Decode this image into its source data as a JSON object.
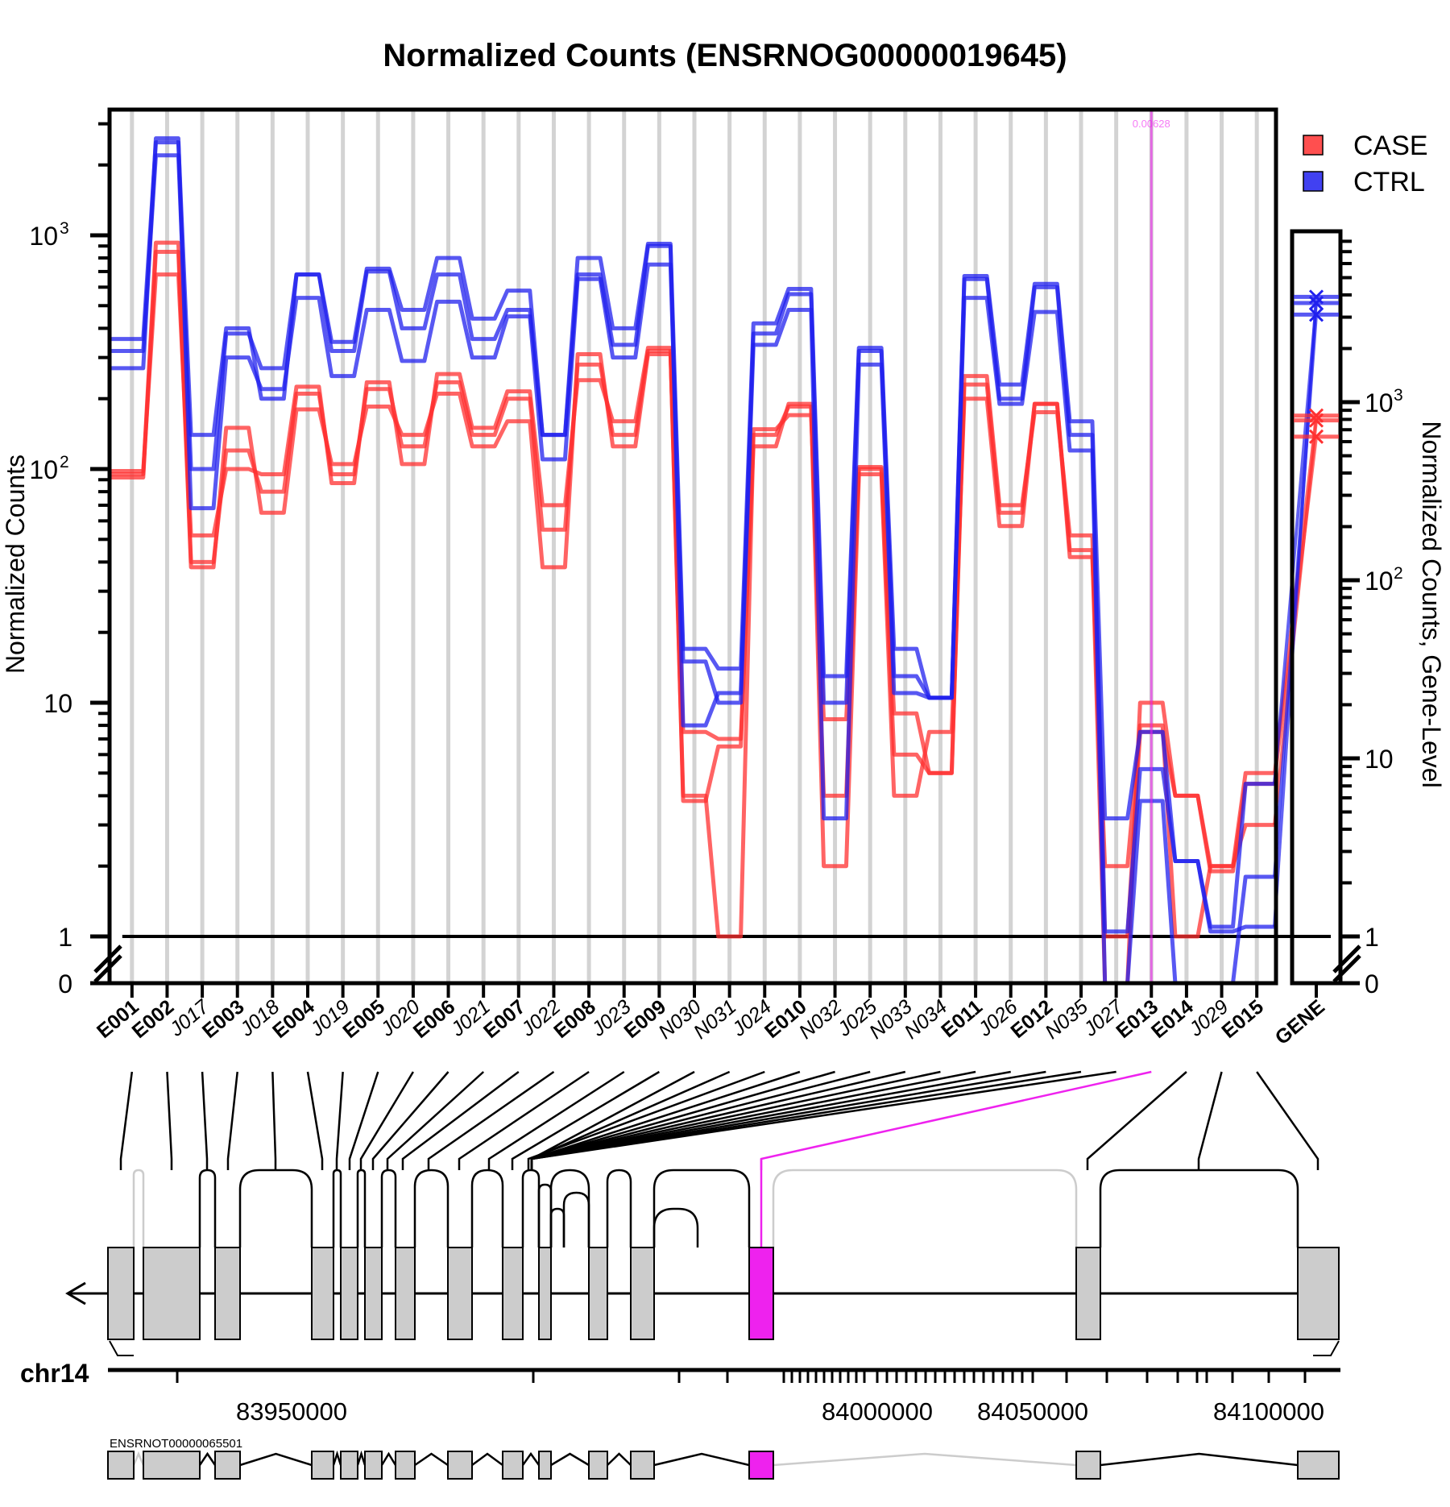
{
  "chart_data": {
    "type": "line",
    "title": "Normalized Counts (ENSRNOG00000019645)",
    "ylabel": "Normalized Counts",
    "ylabel_right": "Normalized Counts, Gene-Level",
    "y_scale": "log",
    "grid": true,
    "legend_position": "top-right",
    "y_ticks": [
      "0",
      "1",
      "10",
      "10^2",
      "10^3"
    ],
    "y_ticks_right": [
      "0",
      "1",
      "10",
      "10^2",
      "10^3"
    ],
    "categories": [
      "E001",
      "E002",
      "J017",
      "E003",
      "J018",
      "E004",
      "J019",
      "E005",
      "J020",
      "E006",
      "J021",
      "E007",
      "J022",
      "E008",
      "J023",
      "E009",
      "N030",
      "N031",
      "J024",
      "E010",
      "N032",
      "J025",
      "N033",
      "N034",
      "E011",
      "J026",
      "E012",
      "N035",
      "J027",
      "E013",
      "E014",
      "J029",
      "E015"
    ],
    "exon_features": [
      "E001",
      "E002",
      "E003",
      "E004",
      "E005",
      "E006",
      "E007",
      "E008",
      "E009",
      "E010",
      "E011",
      "E012",
      "E013",
      "E014",
      "E015"
    ],
    "gene_label": "GENE",
    "highlight": {
      "feature": "E013",
      "pvalue_text": "0.00628",
      "color": "#ee22ee"
    },
    "series": [
      {
        "name": "CASE",
        "color": "#ff3030",
        "values": [
          95,
          930,
          40,
          120,
          80,
          210,
          95,
          220,
          125,
          235,
          140,
          200,
          55,
          280,
          140,
          320,
          4,
          1,
          140,
          185,
          4,
          100,
          6,
          5,
          230,
          65,
          190,
          45,
          0,
          10,
          4,
          2,
          5
        ]
      },
      {
        "name": "CASE",
        "color": "#ff3030",
        "values": [
          92,
          850,
          38,
          150,
          65,
          180,
          105,
          185,
          140,
          210,
          125,
          160,
          38,
          310,
          125,
          310,
          7.5,
          7,
          125,
          190,
          2,
          95,
          4,
          7.5,
          200,
          57,
          190,
          42,
          2,
          8,
          1,
          2,
          3
        ]
      },
      {
        "name": "CASE",
        "color": "#ff3030",
        "values": [
          98,
          680,
          52,
          100,
          95,
          225,
          87,
          235,
          105,
          255,
          150,
          215,
          70,
          240,
          160,
          330,
          3.8,
          6.5,
          148,
          170,
          8.5,
          102,
          9,
          5,
          250,
          70,
          175,
          52,
          1,
          7.5,
          4,
          1.9,
          4.5
        ]
      },
      {
        "name": "CTRL",
        "color": "#2020ee",
        "values": [
          360,
          2500,
          140,
          400,
          200,
          680,
          350,
          720,
          480,
          800,
          440,
          580,
          140,
          800,
          400,
          920,
          17,
          14,
          420,
          590,
          13,
          330,
          17,
          10.5,
          670,
          230,
          620,
          160,
          3.2,
          7.5,
          2.1,
          1.05,
          1.1
        ]
      },
      {
        "name": "CTRL",
        "color": "#2020ee",
        "values": [
          320,
          2200,
          100,
          380,
          270,
          680,
          320,
          700,
          400,
          680,
          360,
          480,
          140,
          680,
          340,
          900,
          8,
          11,
          380,
          560,
          10,
          320,
          13,
          10.5,
          650,
          200,
          600,
          140,
          1.05,
          5.2,
          2.1,
          1.1,
          4.5
        ]
      },
      {
        "name": "CTRL",
        "color": "#2020ee",
        "values": [
          270,
          2600,
          68,
          300,
          220,
          540,
          250,
          480,
          290,
          520,
          300,
          450,
          110,
          650,
          300,
          750,
          15,
          10,
          340,
          480,
          3.2,
          280,
          11,
          10.5,
          540,
          190,
          470,
          120,
          0,
          3.8,
          0,
          0,
          1.8
        ]
      }
    ],
    "gene_level": {
      "CASE": [
        840,
        790,
        640
      ],
      "CTRL": [
        3900,
        3600,
        3100
      ]
    },
    "legend": [
      {
        "label": "CASE",
        "color": "#ff3030"
      },
      {
        "label": "CTRL",
        "color": "#2020ee"
      }
    ]
  },
  "annotation": {
    "chromosome": "chr14",
    "axis_ticks": [
      "83950000",
      "84000000",
      "84050000",
      "84100000"
    ],
    "transcript_id": "ENSRNOT00000065501",
    "strand": "minus"
  }
}
